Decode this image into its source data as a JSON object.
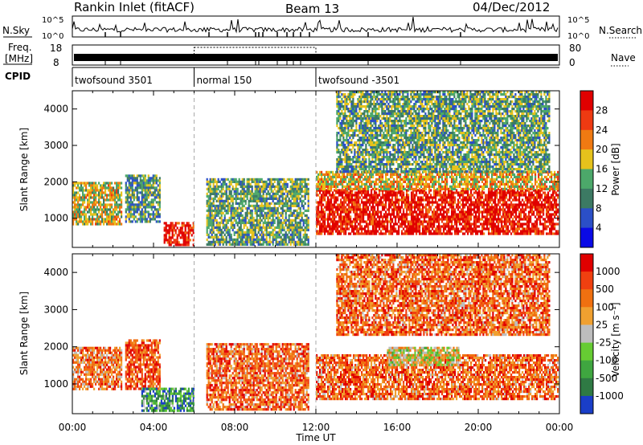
{
  "header": {
    "station": "Rankin Inlet (fitACF)",
    "beam": "Beam 13",
    "date": "04/Dec/2012"
  },
  "aux": {
    "nsky_label": "N.Sky",
    "nsearch_label": "N.Search",
    "freq_label_line1": "Freq.",
    "freq_label_line2": "[MHz]",
    "nave_label": "Nave",
    "cpid_label": "CPID",
    "nsky_ticks": [
      "10^5",
      "10^0"
    ],
    "freq_ticks": [
      "18",
      "8"
    ],
    "nave_ticks": [
      "80",
      "0"
    ]
  },
  "cpid": [
    {
      "name": "twofsound 3501",
      "start": "00:00",
      "end": "06:00"
    },
    {
      "name": "normal 150",
      "start": "06:00",
      "end": "12:00"
    },
    {
      "name": "twofsound -3501",
      "start": "12:00",
      "end": "24:00"
    }
  ],
  "chart_data": [
    {
      "type": "heatmap",
      "panel": "power",
      "ylabel": "Slant Range [km]",
      "y_ticks": [
        "1000",
        "2000",
        "3000",
        "4000"
      ],
      "ylim": [
        200,
        4500
      ],
      "xlim": [
        0,
        24
      ],
      "colorbar_label": "Power [dB]",
      "colorbar_ticks": [
        "28",
        "24",
        "20",
        "16",
        "12",
        "8",
        "4"
      ],
      "colorbar_colors": [
        "#0a0ae6",
        "#2b4fc7",
        "#3c7a63",
        "#4ca86a",
        "#e6c21c",
        "#f07a12",
        "#ee3a12",
        "#e00000"
      ],
      "blobs": [
        {
          "t0": 0.0,
          "t1": 2.4,
          "r0": 850,
          "r1": 2000,
          "level": 0.55
        },
        {
          "t0": 2.6,
          "t1": 4.3,
          "r0": 900,
          "r1": 2200,
          "level": 0.35
        },
        {
          "t0": 4.5,
          "t1": 6.0,
          "r0": 300,
          "r1": 900,
          "level": 0.9
        },
        {
          "t0": 6.6,
          "t1": 11.6,
          "r0": 300,
          "r1": 2100,
          "level": 0.4
        },
        {
          "t0": 12.0,
          "t1": 23.9,
          "r0": 600,
          "r1": 1800,
          "level": 0.92
        },
        {
          "t0": 12.0,
          "t1": 23.9,
          "r0": 1800,
          "r1": 2300,
          "level": 0.6
        },
        {
          "t0": 13.0,
          "t1": 23.5,
          "r0": 2300,
          "r1": 4500,
          "level": 0.4
        }
      ]
    },
    {
      "type": "heatmap",
      "panel": "velocity",
      "ylabel": "Slant Range [km]",
      "y_ticks": [
        "1000",
        "2000",
        "3000",
        "4000"
      ],
      "ylim": [
        200,
        4500
      ],
      "xlim": [
        0,
        24
      ],
      "xlabel": "Time UT",
      "x_ticks": [
        "00:00",
        "04:00",
        "08:00",
        "12:00",
        "16:00",
        "20:00",
        "00:00"
      ],
      "colorbar_label": "Velocity [m s⁻¹]",
      "colorbar_ticks": [
        "1000",
        "500",
        "100",
        "25",
        "-25",
        "-100",
        "-500",
        "-1000"
      ],
      "colorbar_colors": [
        "#1a3ec8",
        "#2f7a44",
        "#3fa640",
        "#66cc33",
        "#bdbdbd",
        "#f0a030",
        "#f07010",
        "#f04010",
        "#e00000"
      ],
      "blobs": [
        {
          "t0": 0.0,
          "t1": 2.4,
          "r0": 850,
          "r1": 2000,
          "level": 0.3
        },
        {
          "t0": 2.6,
          "t1": 4.3,
          "r0": 900,
          "r1": 2200,
          "level": 0.2
        },
        {
          "t0": 3.4,
          "t1": 6.0,
          "r0": 300,
          "r1": 900,
          "level": 0.75
        },
        {
          "t0": 6.6,
          "t1": 11.6,
          "r0": 300,
          "r1": 2100,
          "level": 0.25
        },
        {
          "t0": 12.0,
          "t1": 23.9,
          "r0": 600,
          "r1": 1800,
          "level": 0.25
        },
        {
          "t0": 15.5,
          "t1": 19.0,
          "r0": 1500,
          "r1": 2000,
          "level": 0.5
        },
        {
          "t0": 13.0,
          "t1": 23.5,
          "r0": 2300,
          "r1": 4500,
          "level": 0.25
        }
      ]
    }
  ]
}
